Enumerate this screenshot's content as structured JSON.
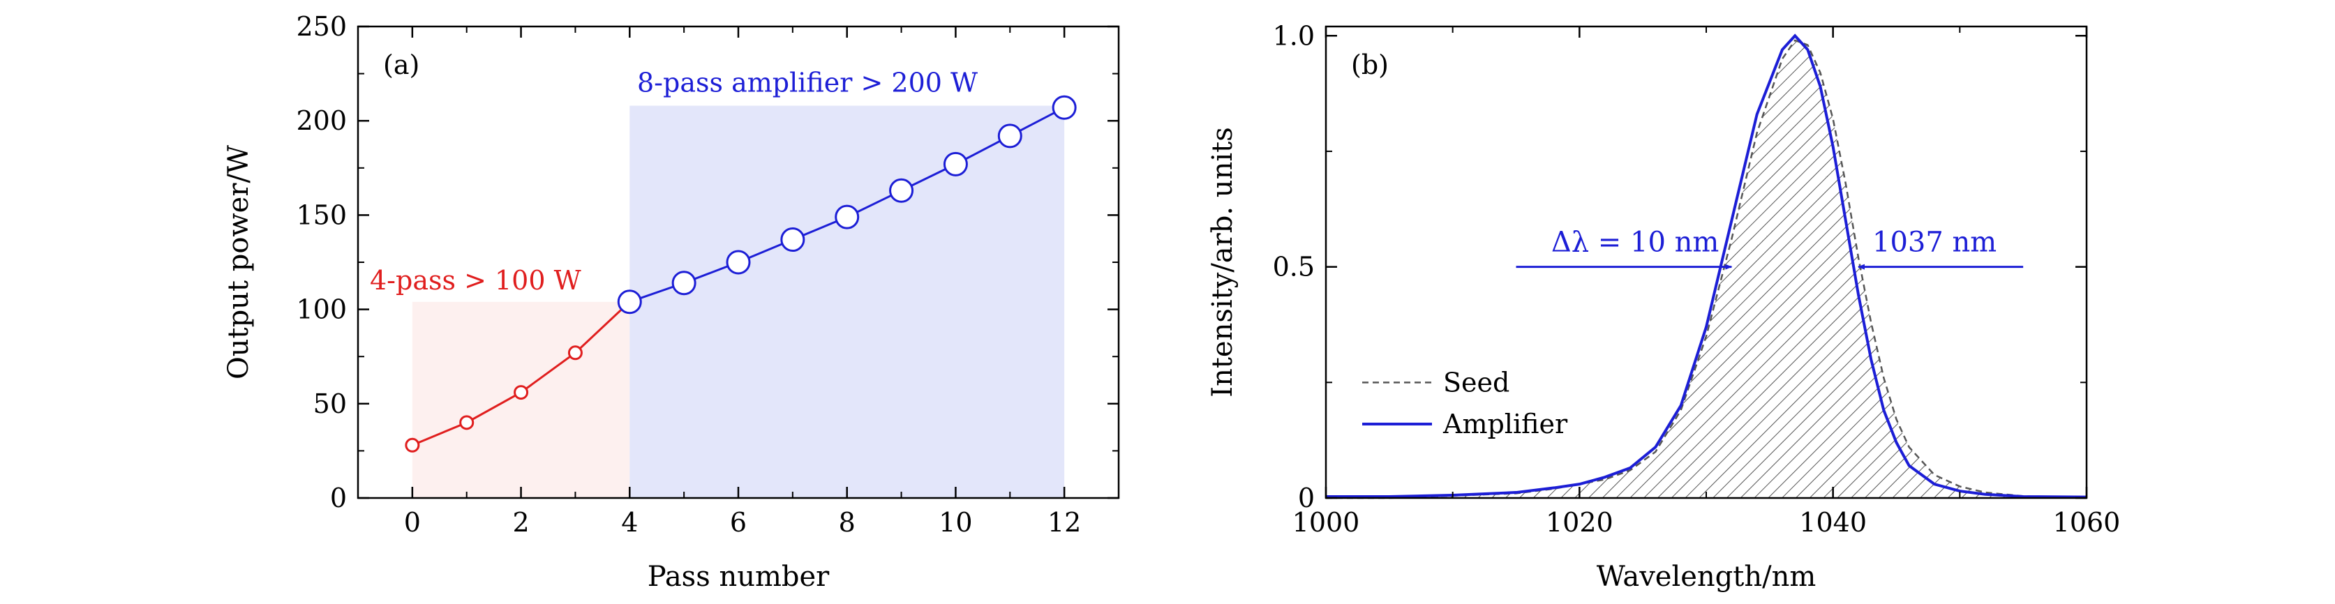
{
  "chart_data": [
    {
      "type": "line",
      "panel_label": "(a)",
      "xlabel": "Pass number",
      "ylabel": "Output power/W",
      "xlim": [
        -1,
        13
      ],
      "ylim": [
        0,
        250
      ],
      "xticks": [
        0,
        2,
        4,
        6,
        8,
        10,
        12
      ],
      "yticks": [
        0,
        50,
        100,
        150,
        200,
        250
      ],
      "grid": false,
      "regions": [
        {
          "label": "4-pass > 100 W",
          "x_range": [
            0,
            4
          ],
          "y_top": 104,
          "fill": "#fdf0ef",
          "text_color": "#e01e1e"
        },
        {
          "label": "8-pass amplifier > 200 W",
          "x_range": [
            4,
            12
          ],
          "y_top": 208,
          "fill": "#e3e6fa",
          "text_color": "#1c1ed6"
        }
      ],
      "series": [
        {
          "color": "#e01e1e",
          "marker": "small-open-circle",
          "x": [
            0,
            1,
            2,
            3,
            4
          ],
          "values": [
            28,
            40,
            56,
            77,
            104
          ]
        },
        {
          "color": "#1c1ed6",
          "marker": "large-open-circle",
          "x": [
            4,
            5,
            6,
            7,
            8,
            9,
            10,
            11,
            12
          ],
          "values": [
            104,
            114,
            125,
            137,
            149,
            163,
            177,
            192,
            207
          ]
        }
      ]
    },
    {
      "type": "area",
      "panel_label": "(b)",
      "xlabel": "Wavelength/nm",
      "ylabel": "Intensity/arb. units",
      "xlim": [
        1000,
        1060
      ],
      "ylim": [
        0,
        1.02
      ],
      "xticks": [
        1000,
        1020,
        1040,
        1060
      ],
      "yticks": [
        0,
        0.5,
        1.0
      ],
      "ytick_labels": [
        "0",
        "0.5",
        "1.0"
      ],
      "grid": false,
      "legend_position": "lower-left",
      "annotations": [
        {
          "text": "Δλ = 10 nm",
          "color": "#1c1ed6",
          "arrow_from": 1015,
          "arrow_to": 1032,
          "y": 0.5
        },
        {
          "text": "1037 nm",
          "color": "#1c1ed6",
          "arrow_from": 1055,
          "arrow_to": 1042,
          "y": 0.5
        }
      ],
      "series": [
        {
          "name": "Seed",
          "style": "dashed",
          "color": "#555555",
          "x": [
            1000,
            1005,
            1010,
            1015,
            1018,
            1020,
            1022,
            1024,
            1026,
            1028,
            1030,
            1032,
            1034,
            1036,
            1037,
            1038,
            1039,
            1040,
            1041,
            1042,
            1043,
            1044,
            1045,
            1046,
            1048,
            1050,
            1052,
            1055,
            1060
          ],
          "values": [
            0.0,
            0.0,
            0.005,
            0.01,
            0.02,
            0.03,
            0.04,
            0.06,
            0.1,
            0.19,
            0.35,
            0.56,
            0.79,
            0.95,
            0.99,
            0.98,
            0.92,
            0.82,
            0.68,
            0.52,
            0.38,
            0.26,
            0.17,
            0.11,
            0.05,
            0.025,
            0.012,
            0.004,
            0.0
          ]
        },
        {
          "name": "Amplifier",
          "style": "solid",
          "color": "#1c1ed6",
          "x": [
            1000,
            1005,
            1010,
            1015,
            1018,
            1020,
            1022,
            1024,
            1026,
            1028,
            1030,
            1032,
            1034,
            1036,
            1037,
            1038,
            1039,
            1040,
            1041,
            1042,
            1043,
            1044,
            1045,
            1046,
            1048,
            1050,
            1052,
            1055,
            1060
          ],
          "values": [
            0.003,
            0.003,
            0.006,
            0.012,
            0.022,
            0.03,
            0.045,
            0.065,
            0.11,
            0.2,
            0.37,
            0.6,
            0.83,
            0.97,
            1.0,
            0.97,
            0.89,
            0.76,
            0.6,
            0.44,
            0.3,
            0.19,
            0.12,
            0.07,
            0.03,
            0.015,
            0.008,
            0.003,
            0.002
          ]
        }
      ]
    }
  ]
}
